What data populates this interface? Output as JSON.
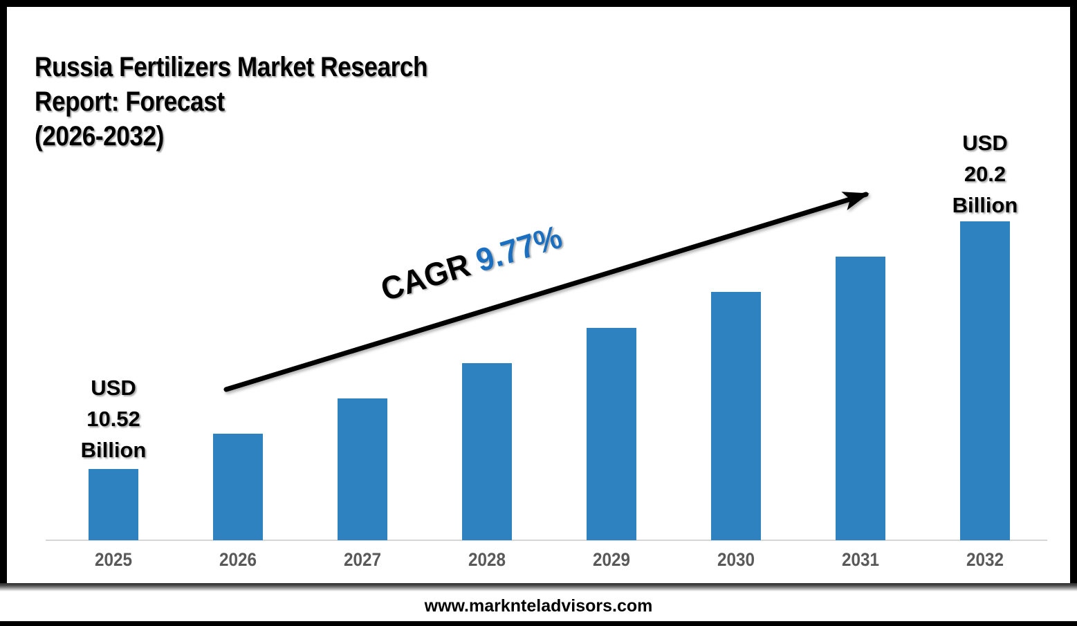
{
  "title": {
    "lines": [
      "Russia Fertilizers Market Research",
      "Report: Forecast",
      "(2026-2032)"
    ]
  },
  "annotations": {
    "start_value": {
      "lines": [
        "USD",
        "10.52",
        "Billion"
      ]
    },
    "end_value": {
      "lines": [
        "USD",
        "20.2",
        "Billion"
      ]
    },
    "cagr": {
      "prefix": "CAGR ",
      "value": "9.77%"
    }
  },
  "footer": {
    "url": "www.marknteladvisors.com"
  },
  "colors": {
    "bar": "#2E82C0",
    "cagr_value": "#1B6FC0",
    "axis_line": "#D6D6D6",
    "tick_label": "#595959",
    "arrow": "#000000"
  },
  "chart_data": {
    "type": "bar",
    "title": "Russia Fertilizers Market Research Report: Forecast (2026-2032)",
    "unit": "USD Billion",
    "categories": [
      "2025",
      "2026",
      "2027",
      "2028",
      "2029",
      "2030",
      "2031",
      "2032"
    ],
    "values": [
      10.52,
      11.9,
      13.29,
      14.67,
      16.05,
      17.43,
      18.82,
      20.2
    ],
    "labeled_points": {
      "2025": "USD 10.52 Billion",
      "2032": "USD 20.2 Billion"
    },
    "cagr_percent": 9.77,
    "xlabel": "",
    "ylabel": "",
    "grid": false,
    "legend": false
  }
}
